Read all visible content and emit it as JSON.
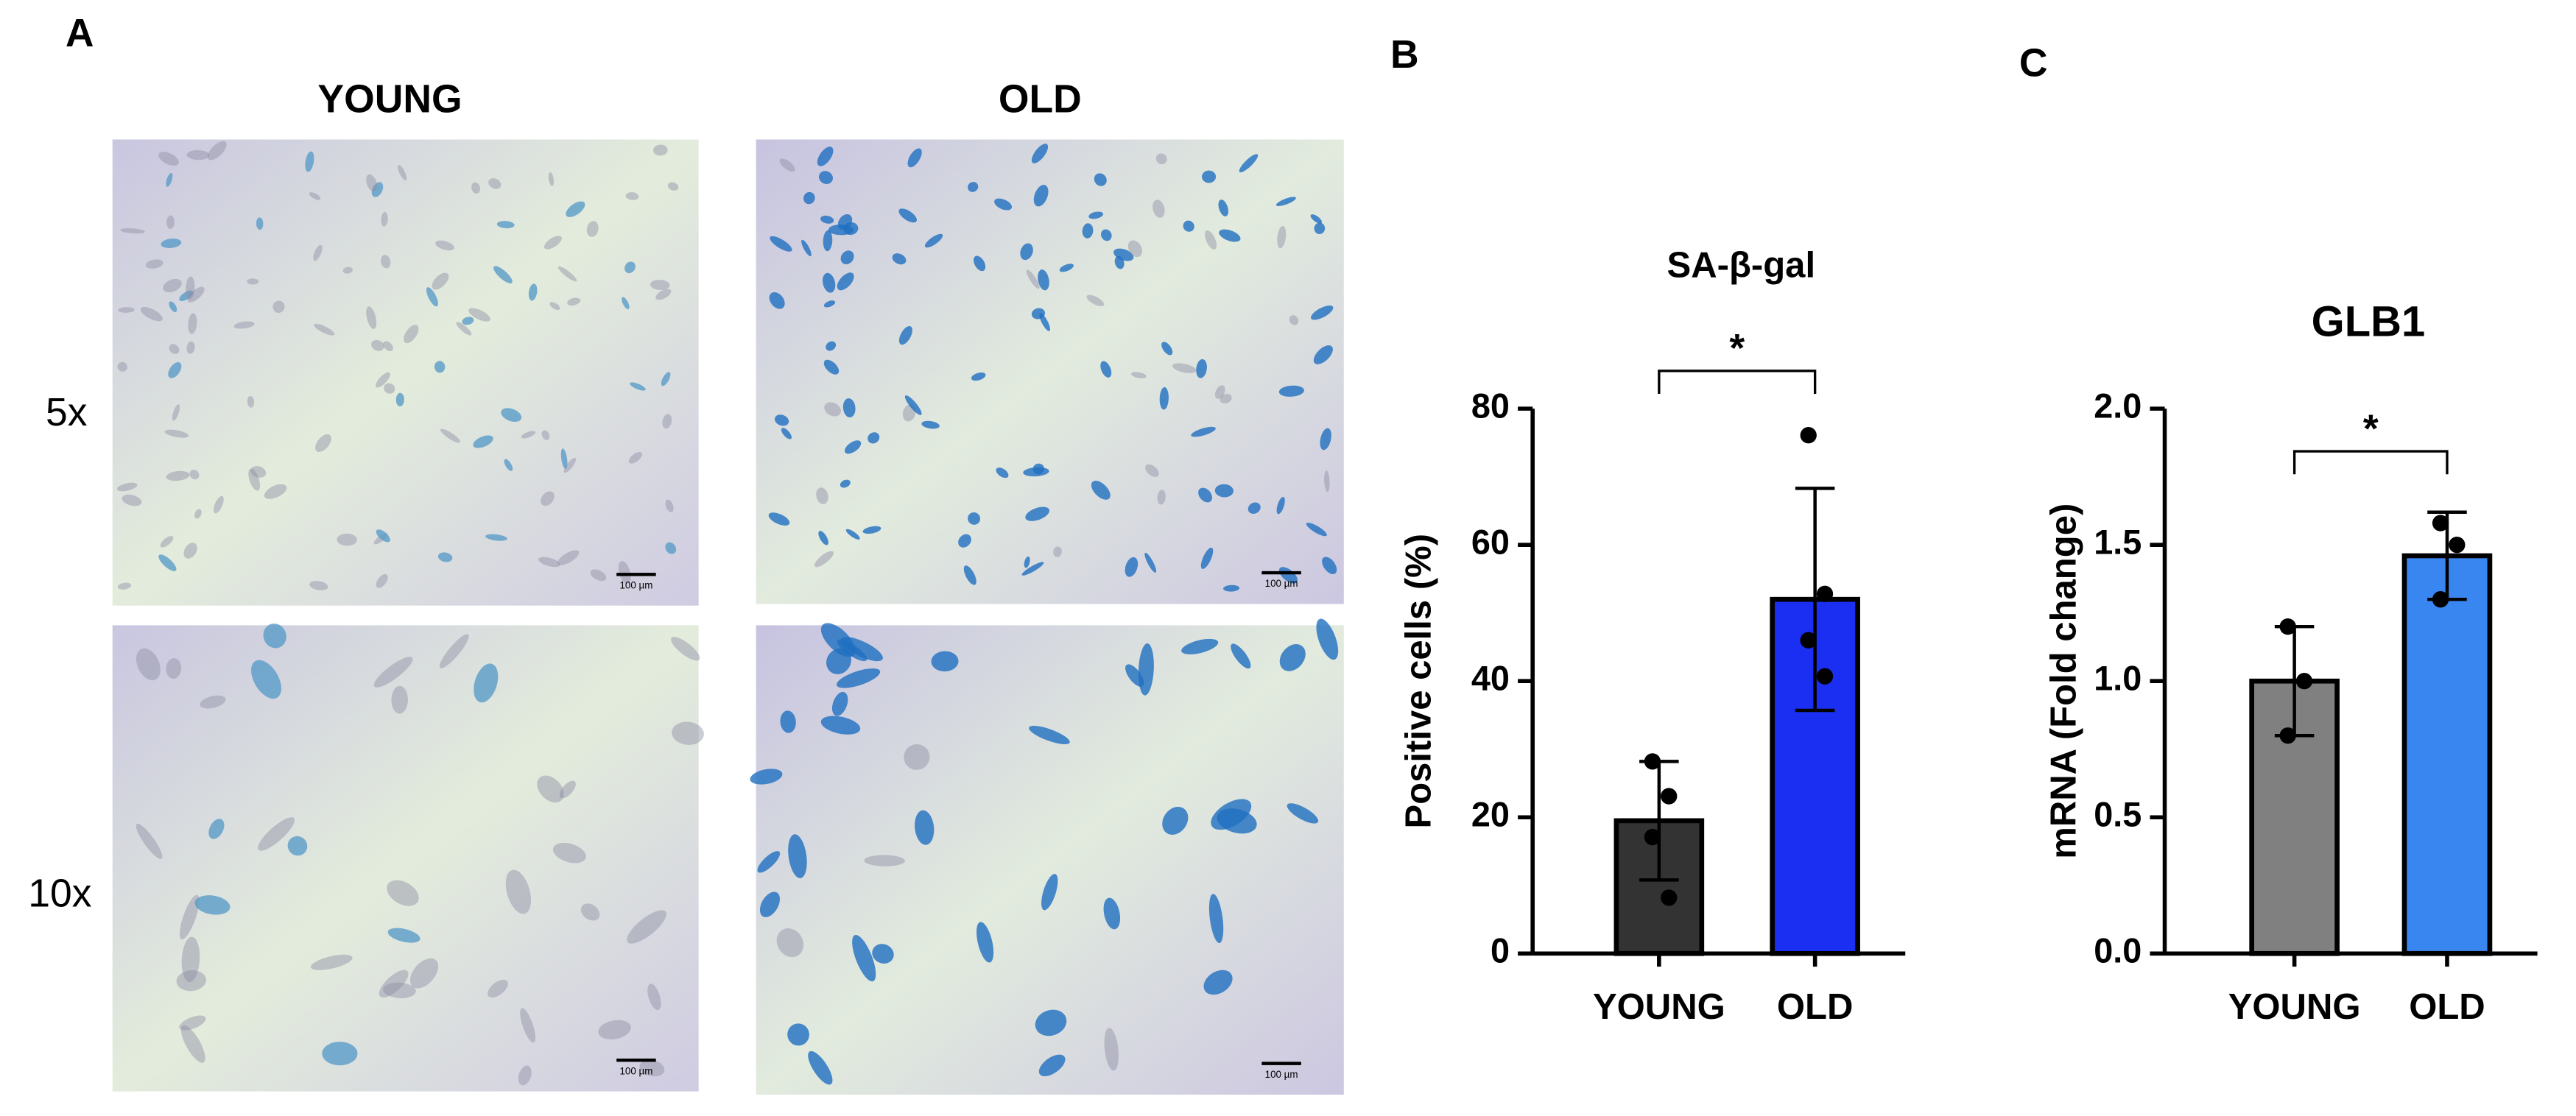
{
  "panel_a": {
    "label": "A",
    "columns": [
      "YOUNG",
      "OLD"
    ],
    "rows": [
      "5x",
      "10x"
    ],
    "scale_bar": "100 µm"
  },
  "chart_data": [
    {
      "type": "bar",
      "panel": "B",
      "title": "SA-β-gal",
      "ylabel": "Positive cells (%)",
      "categories": [
        "YOUNG",
        "OLD"
      ],
      "values": [
        19.5,
        52
      ],
      "errors": [
        8.7,
        16.3
      ],
      "colors": [
        "#333333",
        "#1b2ff2"
      ],
      "points": [
        [
          28.2,
          23.1,
          17.1,
          8.2
        ],
        [
          76.1,
          52.8,
          46,
          40.7
        ]
      ],
      "ylim": [
        0,
        80
      ],
      "yticks": [
        0,
        20,
        40,
        60,
        80
      ],
      "significance": "*"
    },
    {
      "type": "bar",
      "panel": "C",
      "title": "GLB1",
      "ylabel": "mRNA (Fold change)",
      "categories": [
        "YOUNG",
        "OLD"
      ],
      "values": [
        1.0,
        1.46
      ],
      "errors": [
        0.2,
        0.16
      ],
      "colors": [
        "#808080",
        "#3a86f0"
      ],
      "points": [
        [
          1.2,
          1.0,
          0.8
        ],
        [
          1.58,
          1.5,
          1.3
        ]
      ],
      "ylim": [
        0,
        2
      ],
      "yticks": [
        {
          "value": 0,
          "label": "0.0"
        },
        0.5,
        {
          "value": 1,
          "label": "1.0"
        },
        1.5,
        {
          "value": 2,
          "label": "2.0"
        }
      ],
      "significance": "*"
    }
  ]
}
